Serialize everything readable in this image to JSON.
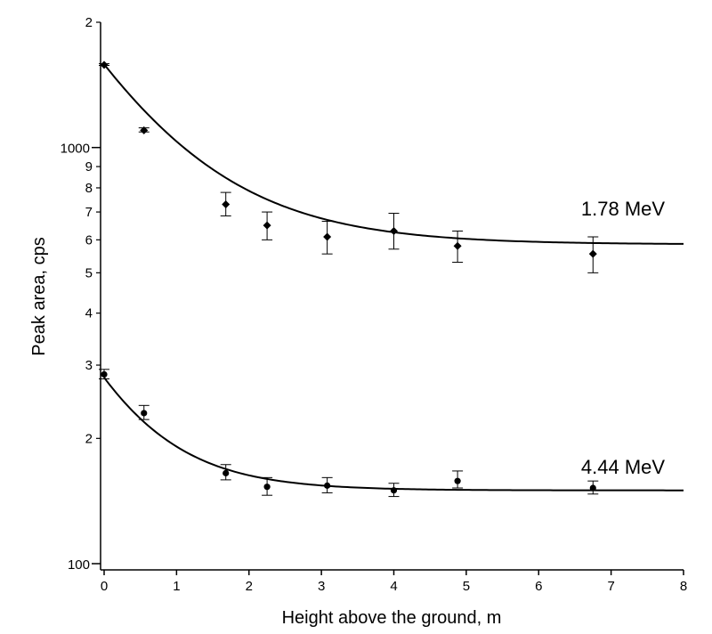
{
  "chart_data": {
    "type": "scatter",
    "xlabel": "Height above the ground, m",
    "ylabel": "Peak area, cps",
    "xlim": [
      0,
      8
    ],
    "ylim": [
      100,
      2000
    ],
    "y_scale": "log",
    "grid": false,
    "x_ticks": [
      0,
      1,
      2,
      3,
      4,
      5,
      6,
      7,
      8
    ],
    "x_tick_labels": [
      "0",
      "1",
      "2",
      "3",
      "4",
      "5",
      "6",
      "7",
      "8"
    ],
    "y_major_ticks": [
      {
        "value": 100,
        "label": "100"
      },
      {
        "value": 1000,
        "label": "1000"
      }
    ],
    "y_minor_ticks": [
      {
        "value": 200,
        "label": "2"
      },
      {
        "value": 300,
        "label": "3"
      },
      {
        "value": 400,
        "label": "4"
      },
      {
        "value": 500,
        "label": "5"
      },
      {
        "value": 600,
        "label": "6"
      },
      {
        "value": 700,
        "label": "7"
      },
      {
        "value": 800,
        "label": "8"
      },
      {
        "value": 900,
        "label": "9"
      },
      {
        "value": 2000,
        "label": "2"
      }
    ],
    "series": [
      {
        "name": "1.78 MeV",
        "marker": "diamond",
        "x": [
          0,
          0.55,
          1.68,
          2.25,
          3.08,
          4.0,
          4.88,
          6.75
        ],
        "y": [
          1580,
          1100,
          730,
          650,
          610,
          630,
          580,
          555
        ],
        "err_low": [
          1575,
          1090,
          685,
          600,
          555,
          570,
          530,
          500
        ],
        "err_high": [
          1590,
          1115,
          780,
          700,
          665,
          695,
          630,
          610
        ],
        "fit": {
          "a": 1000,
          "b": 0.8,
          "c": 585
        }
      },
      {
        "name": "4.44 MeV",
        "marker": "circle",
        "x": [
          0,
          0.55,
          1.68,
          2.25,
          3.08,
          4.0,
          4.88,
          6.75
        ],
        "y": [
          285,
          230,
          165,
          153,
          154,
          150,
          158,
          152
        ],
        "err_low": [
          278,
          222,
          159,
          146,
          148,
          145,
          152,
          147
        ],
        "err_high": [
          293,
          240,
          173,
          161,
          161,
          156,
          167,
          158
        ],
        "fit": {
          "a": 130,
          "b": 1.15,
          "c": 150
        }
      }
    ]
  }
}
